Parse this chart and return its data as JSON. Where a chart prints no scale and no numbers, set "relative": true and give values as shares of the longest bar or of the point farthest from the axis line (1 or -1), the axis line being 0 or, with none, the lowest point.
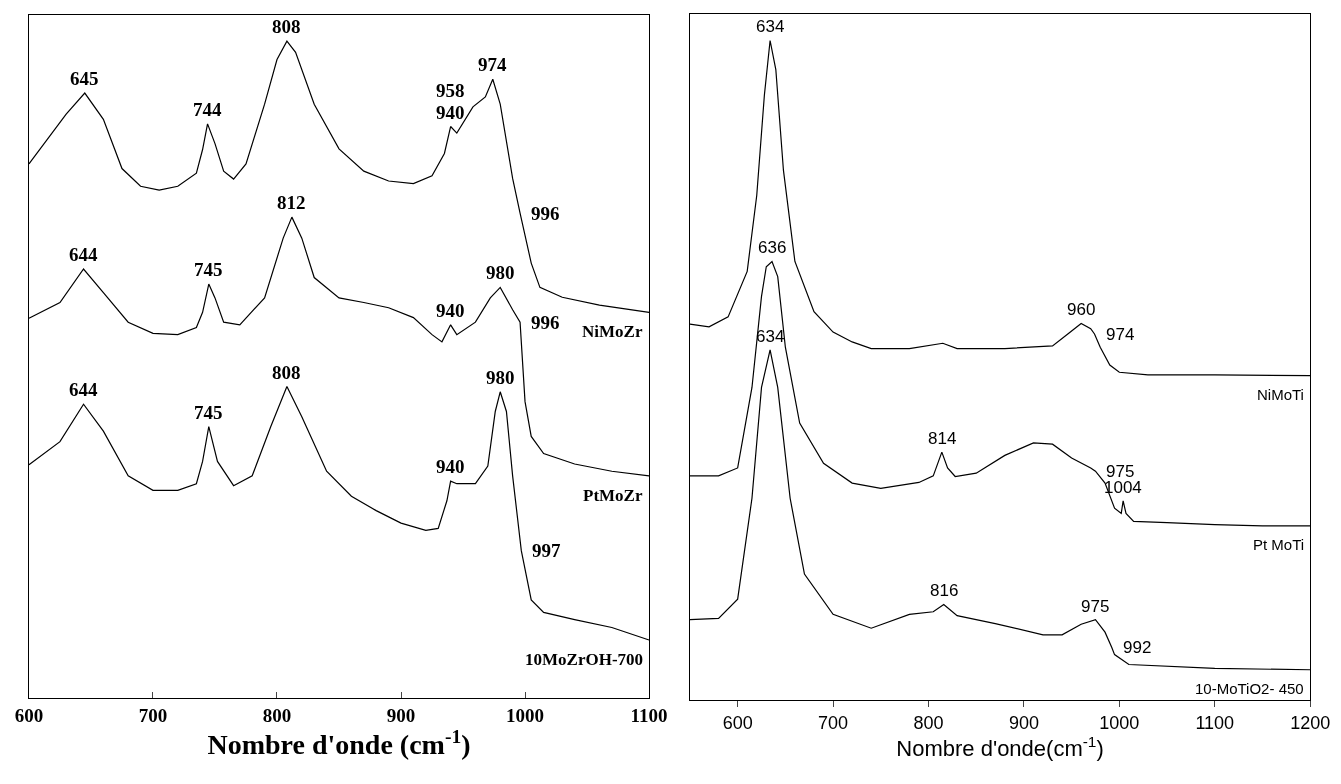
{
  "chart_data": [
    {
      "type": "line",
      "relative": true,
      "xlabel": "Nombre d'onde (cm$^{-1}$)",
      "xlim": [
        600,
        1100
      ],
      "xticks": [
        600,
        700,
        800,
        900,
        1000,
        1100
      ],
      "legend": false,
      "marker": "none",
      "line_style": "solid",
      "tick_labels": "x",
      "series": [
        {
          "name": "NiMoZr",
          "color": "#000000",
          "x": [
            600,
            630,
            645,
            660,
            675,
            690,
            705,
            720,
            735,
            740,
            744,
            750,
            757,
            765,
            775,
            790,
            800,
            808,
            815,
            830,
            850,
            870,
            890,
            910,
            925,
            935,
            940,
            945,
            958,
            968,
            974,
            980,
            990,
            996,
            1005,
            1012,
            1030,
            1060,
            1100
          ],
          "values": [
            0.813,
            0.889,
            0.921,
            0.881,
            0.806,
            0.779,
            0.773,
            0.779,
            0.799,
            0.835,
            0.874,
            0.844,
            0.802,
            0.79,
            0.813,
            0.904,
            0.972,
            1.0,
            0.983,
            0.904,
            0.836,
            0.802,
            0.787,
            0.783,
            0.795,
            0.829,
            0.87,
            0.86,
            0.9,
            0.915,
            0.942,
            0.904,
            0.791,
            0.738,
            0.662,
            0.625,
            0.61,
            0.598,
            0.587
          ]
        },
        {
          "name": "PtMoZr",
          "color": "#000000",
          "x": [
            600,
            625,
            644,
            660,
            680,
            700,
            720,
            735,
            740,
            745,
            750,
            757,
            770,
            790,
            805,
            812,
            820,
            830,
            850,
            870,
            890,
            910,
            925,
            933,
            940,
            945,
            960,
            972,
            980,
            990,
            996,
            1000,
            1005,
            1015,
            1040,
            1070,
            1100
          ],
          "values": [
            0.578,
            0.602,
            0.653,
            0.617,
            0.572,
            0.555,
            0.553,
            0.564,
            0.587,
            0.63,
            0.609,
            0.572,
            0.568,
            0.609,
            0.7,
            0.732,
            0.7,
            0.64,
            0.609,
            0.602,
            0.594,
            0.579,
            0.553,
            0.542,
            0.568,
            0.553,
            0.572,
            0.609,
            0.625,
            0.591,
            0.572,
            0.451,
            0.398,
            0.372,
            0.356,
            0.345,
            0.338
          ]
        },
        {
          "name": "10MoZrOH-700",
          "color": "#000000",
          "x": [
            600,
            625,
            644,
            660,
            680,
            700,
            720,
            735,
            740,
            745,
            752,
            765,
            780,
            795,
            808,
            820,
            840,
            860,
            880,
            900,
            920,
            930,
            937,
            940,
            945,
            960,
            970,
            976,
            980,
            985,
            990,
            997,
            1005,
            1015,
            1040,
            1070,
            1100
          ],
          "values": [
            0.355,
            0.39,
            0.447,
            0.406,
            0.338,
            0.316,
            0.316,
            0.326,
            0.36,
            0.413,
            0.36,
            0.323,
            0.338,
            0.413,
            0.474,
            0.428,
            0.345,
            0.307,
            0.285,
            0.266,
            0.255,
            0.258,
            0.3,
            0.33,
            0.326,
            0.326,
            0.353,
            0.436,
            0.466,
            0.436,
            0.338,
            0.224,
            0.149,
            0.13,
            0.119,
            0.107,
            0.088
          ]
        }
      ],
      "annotations": [
        {
          "text": "645",
          "x": 645,
          "y": 0.921
        },
        {
          "text": "744",
          "x": 744,
          "y": 0.874
        },
        {
          "text": "808",
          "x": 808,
          "y": 1.0
        },
        {
          "text": "958",
          "x": 958,
          "y": 0.9
        },
        {
          "text": "974",
          "x": 974,
          "y": 0.942
        },
        {
          "text": "940",
          "x": 940,
          "y": 0.87
        },
        {
          "text": "996",
          "x": 996,
          "y": 0.738
        },
        {
          "text": "812",
          "x": 812,
          "y": 0.732
        },
        {
          "text": "644",
          "x": 644,
          "y": 0.653
        },
        {
          "text": "745",
          "x": 745,
          "y": 0.63
        },
        {
          "text": "940",
          "x": 940,
          "y": 0.568
        },
        {
          "text": "980",
          "x": 980,
          "y": 0.625
        },
        {
          "text": "996",
          "x": 996,
          "y": 0.572
        },
        {
          "text": "644",
          "x": 644,
          "y": 0.447
        },
        {
          "text": "745",
          "x": 745,
          "y": 0.413
        },
        {
          "text": "808",
          "x": 808,
          "y": 0.474
        },
        {
          "text": "940",
          "x": 940,
          "y": 0.33
        },
        {
          "text": "980",
          "x": 980,
          "y": 0.466
        },
        {
          "text": "997",
          "x": 997,
          "y": 0.224
        }
      ]
    },
    {
      "type": "line",
      "relative": true,
      "xlabel": "Nombre d'onde(cm$^{-1}$)",
      "xlim": [
        550,
        1200
      ],
      "xticks": [
        600,
        700,
        800,
        900,
        1000,
        1100,
        1200
      ],
      "legend": false,
      "marker": "none",
      "line_style": "solid",
      "tick_labels": "x",
      "series": [
        {
          "name": "NiMoTi",
          "color": "#000000",
          "x": [
            550,
            570,
            590,
            610,
            620,
            628,
            634,
            640,
            648,
            660,
            680,
            700,
            720,
            740,
            780,
            815,
            830,
            880,
            930,
            945,
            960,
            970,
            974,
            980,
            990,
            1000,
            1030,
            1100,
            1200
          ],
          "values": [
            0.57,
            0.566,
            0.581,
            0.65,
            0.765,
            0.917,
            1.0,
            0.956,
            0.803,
            0.665,
            0.589,
            0.558,
            0.543,
            0.533,
            0.533,
            0.541,
            0.533,
            0.533,
            0.537,
            0.554,
            0.571,
            0.563,
            0.555,
            0.535,
            0.508,
            0.497,
            0.493,
            0.493,
            0.492
          ]
        },
        {
          "name": "Pt MoTi",
          "color": "#000000",
          "x": [
            550,
            580,
            600,
            615,
            625,
            630,
            636,
            642,
            650,
            665,
            690,
            720,
            750,
            790,
            805,
            814,
            820,
            828,
            850,
            880,
            910,
            930,
            950,
            970,
            975,
            985,
            995,
            1002,
            1004,
            1007,
            1015,
            1050,
            1100,
            1150,
            1200
          ],
          "values": [
            0.34,
            0.34,
            0.352,
            0.474,
            0.612,
            0.657,
            0.665,
            0.642,
            0.535,
            0.42,
            0.359,
            0.329,
            0.321,
            0.33,
            0.34,
            0.376,
            0.352,
            0.339,
            0.344,
            0.371,
            0.39,
            0.388,
            0.367,
            0.352,
            0.347,
            0.329,
            0.291,
            0.283,
            0.302,
            0.283,
            0.271,
            0.269,
            0.266,
            0.264,
            0.264
          ]
        },
        {
          "name": "10-MoTiO2- 450",
          "color": "#000000",
          "x": [
            550,
            580,
            600,
            615,
            625,
            634,
            642,
            655,
            670,
            700,
            740,
            780,
            805,
            816,
            830,
            870,
            920,
            940,
            960,
            975,
            985,
            992,
            995,
            1010,
            1100,
            1200
          ],
          "values": [
            0.122,
            0.124,
            0.153,
            0.306,
            0.474,
            0.531,
            0.474,
            0.306,
            0.191,
            0.13,
            0.109,
            0.13,
            0.134,
            0.145,
            0.128,
            0.116,
            0.099,
            0.099,
            0.115,
            0.122,
            0.103,
            0.08,
            0.069,
            0.054,
            0.048,
            0.046
          ]
        }
      ],
      "annotations": [
        {
          "text": "634",
          "x": 634,
          "y": 1.0
        },
        {
          "text": "636",
          "x": 636,
          "y": 0.665
        },
        {
          "text": "634",
          "x": 634,
          "y": 0.531
        },
        {
          "text": "960",
          "x": 960,
          "y": 0.571
        },
        {
          "text": "974",
          "x": 974,
          "y": 0.555
        },
        {
          "text": "814",
          "x": 814,
          "y": 0.376
        },
        {
          "text": "975",
          "x": 975,
          "y": 0.347
        },
        {
          "text": "1004",
          "x": 1004,
          "y": 0.302
        },
        {
          "text": "816",
          "x": 816,
          "y": 0.145
        },
        {
          "text": "975",
          "x": 975,
          "y": 0.122
        },
        {
          "text": "992",
          "x": 992,
          "y": 0.08
        }
      ]
    }
  ]
}
